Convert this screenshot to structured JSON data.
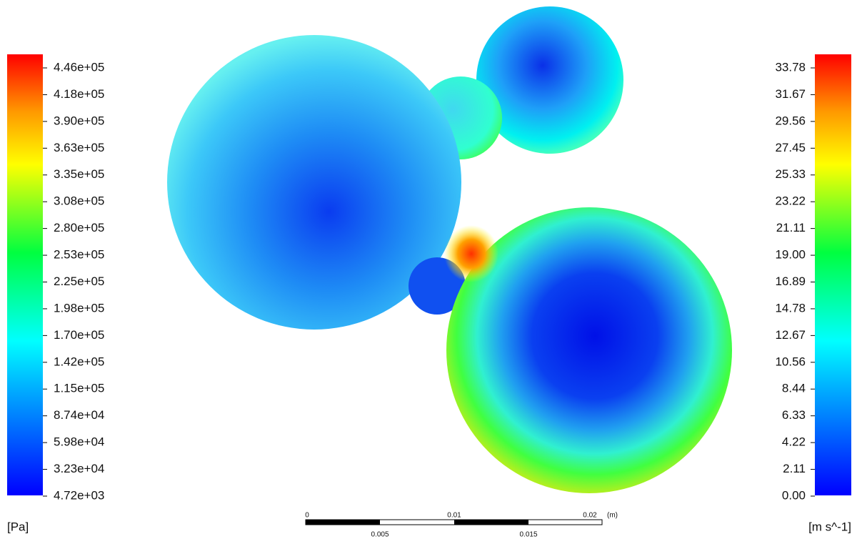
{
  "pressure_legend": {
    "labels": [
      "4.46e+05",
      "4.18e+05",
      "3.90e+05",
      "3.63e+05",
      "3.35e+05",
      "3.08e+05",
      "2.80e+05",
      "2.53e+05",
      "2.25e+05",
      "1.98e+05",
      "1.70e+05",
      "1.42e+05",
      "1.15e+05",
      "8.74e+04",
      "5.98e+04",
      "3.23e+04",
      "4.72e+03"
    ],
    "unit": "[Pa]"
  },
  "velocity_legend": {
    "labels": [
      "33.78",
      "31.67",
      "29.56",
      "27.45",
      "25.33",
      "23.22",
      "21.11",
      "19.00",
      "16.89",
      "14.78",
      "12.67",
      "10.56",
      "8.44",
      "6.33",
      "4.22",
      "2.11",
      "0.00"
    ],
    "unit": "[m s^-1]"
  },
  "scale_bar": {
    "top_labels": [
      "0",
      "0.01",
      "0.02"
    ],
    "unit": "(m)",
    "bottom_labels": [
      "0.005",
      "0.015"
    ]
  }
}
